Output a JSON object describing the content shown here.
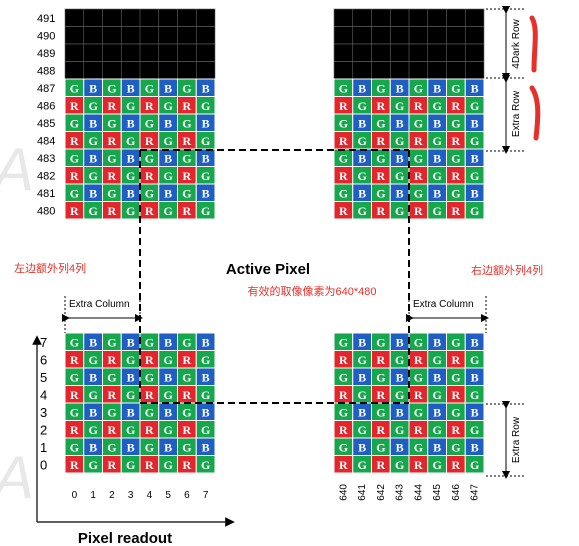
{
  "top_rows": [
    "491",
    "490",
    "489",
    "488",
    "487",
    "486",
    "485",
    "484",
    "483",
    "482",
    "481",
    "480"
  ],
  "bottom_rows": [
    "7",
    "6",
    "5",
    "4",
    "3",
    "2",
    "1",
    "0"
  ],
  "left_columns": [
    "0",
    "1",
    "2",
    "3",
    "4",
    "5",
    "6",
    "7"
  ],
  "right_columns": [
    "640",
    "641",
    "642",
    "643",
    "644",
    "645",
    "646",
    "647"
  ],
  "pattern": {
    "gb_row": [
      "G",
      "B",
      "G",
      "B",
      "G",
      "B",
      "G",
      "B"
    ],
    "rg_row": [
      "R",
      "G",
      "R",
      "G",
      "R",
      "G",
      "R",
      "G"
    ]
  },
  "colors": {
    "G": "#16a64b",
    "B": "#1f5fc4",
    "R": "#e3262b",
    "dark": "#000000",
    "note": "#e8302a"
  },
  "labels": {
    "active_pixel": "Active Pixel",
    "left_extra_column": "Extra Column",
    "right_extra_column": "Extra Column",
    "dark_row": "4Dark Row",
    "top_extra_row": "Extra Row",
    "bottom_extra_row": "Extra Row",
    "pixel_readout": "Pixel readout",
    "left_note": "左边额外列4列",
    "right_note": "右边额外列4列",
    "center_note": "有效的取像像素为640*480"
  }
}
